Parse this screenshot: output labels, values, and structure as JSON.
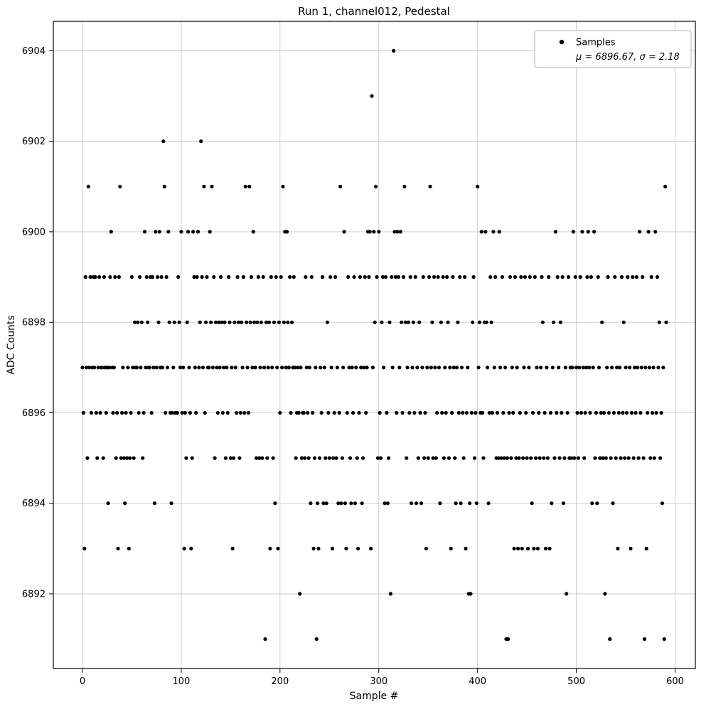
{
  "figure": {
    "title": "Run 1, channel012, Pedestal",
    "xlabel": "Sample #",
    "ylabel": "ADC Counts",
    "legend": {
      "label": "Samples",
      "stats": "μ = 6896.67, σ = 2.18"
    }
  },
  "chart_data": {
    "type": "scatter",
    "title": "Run 1, channel012, Pedestal",
    "xlabel": "Sample #",
    "ylabel": "ADC Counts",
    "xlim": [
      -29.5,
      620.5
    ],
    "ylim": [
      6890.35,
      6904.65
    ],
    "xticks": [
      0,
      100,
      200,
      300,
      400,
      500,
      600
    ],
    "yticks": [
      6892,
      6894,
      6896,
      6898,
      6900,
      6902,
      6904
    ],
    "grid": true,
    "grid_color": "#c9c9c9",
    "marker_color": "#000000",
    "marker_radius": 2.6,
    "legend_position": "upper right",
    "stats": {
      "mu": 6896.67,
      "sigma": 2.18
    },
    "series": [
      {
        "name": "Samples",
        "x_start": 0,
        "x_step": 1,
        "y": [
          6897,
          6896,
          6893,
          6899,
          6897,
          6895,
          6901,
          6897,
          6899,
          6896,
          6897,
          6899,
          6897,
          6899,
          6896,
          6895,
          6897,
          6899,
          6896,
          6897,
          6897,
          6895,
          6899,
          6897,
          6896,
          6897,
          6894,
          6897,
          6899,
          6900,
          6897,
          6896,
          6897,
          6899,
          6895,
          6896,
          6893,
          6899,
          6901,
          6895,
          6896,
          6897,
          6895,
          6894,
          6896,
          6895,
          6897,
          6893,
          6895,
          6896,
          6899,
          6897,
          6895,
          6898,
          6897,
          6897,
          6898,
          6896,
          6899,
          6897,
          6898,
          6895,
          6896,
          6900,
          6897,
          6899,
          6898,
          6897,
          6897,
          6899,
          6896,
          6899,
          6897,
          6894,
          6900,
          6897,
          6899,
          6898,
          6900,
          6897,
          6899,
          6897,
          6902,
          6901,
          6896,
          6899,
          6897,
          6900,
          6898,
          6896,
          6894,
          6896,
          6897,
          6898,
          6896,
          6896,
          6896,
          6899,
          6898,
          6897,
          6900,
          6896,
          6897,
          6893,
          6896,
          6895,
          6898,
          6900,
          6897,
          6896,
          6893,
          6895,
          6900,
          6899,
          6897,
          6896,
          6899,
          6900,
          6897,
          6898,
          6902,
          6899,
          6897,
          6901,
          6896,
          6898,
          6899,
          6897,
          6897,
          6900,
          6898,
          6901,
          6897,
          6899,
          6895,
          6898,
          6897,
          6896,
          6898,
          6897,
          6899,
          6898,
          6896,
          6897,
          6898,
          6895,
          6897,
          6896,
          6899,
          6898,
          6895,
          6897,
          6893,
          6895,
          6898,
          6897,
          6896,
          6899,
          6898,
          6895,
          6896,
          6898,
          6897,
          6899,
          6896,
          6901,
          6898,
          6897,
          6896,
          6901,
          6898,
          6899,
          6897,
          6900,
          6898,
          6897,
          6895,
          6898,
          6899,
          6895,
          6897,
          6898,
          6895,
          6899,
          6897,
          6891,
          6898,
          6895,
          6897,
          6898,
          6893,
          6899,
          6897,
          6895,
          6898,
          6894,
          6899,
          6897,
          6893,
          6898,
          6896,
          6899,
          6897,
          6901,
          6898,
          6900,
          6897,
          6900,
          6898,
          6897,
          6899,
          6896,
          6898,
          6897,
          6899,
          6897,
          6895,
          6896,
          6897,
          6896,
          6892,
          6897,
          6895,
          6896,
          6896,
          6895,
          6899,
          6897,
          6896,
          6895,
          6897,
          6894,
          6899,
          6896,
          6893,
          6895,
          6897,
          6891,
          6894,
          6893,
          6895,
          6897,
          6896,
          6899,
          6894,
          6897,
          6895,
          6894,
          6898,
          6896,
          6895,
          6899,
          6897,
          6893,
          6895,
          6896,
          6899,
          6895,
          6897,
          6894,
          6896,
          6901,
          6894,
          6895,
          6897,
          6900,
          6894,
          6893,
          6896,
          6899,
          6897,
          6895,
          6894,
          6897,
          6896,
          6899,
          6894,
          6897,
          6895,
          6893,
          6896,
          6899,
          6897,
          6894,
          6895,
          6897,
          6899,
          6896,
          6897,
          6900,
          6899,
          6900,
          6893,
          6903,
          6897,
          6900,
          6898,
          6901,
          6899,
          6895,
          6900,
          6896,
          6895,
          6898,
          6899,
          6897,
          6894,
          6899,
          6896,
          6894,
          6895,
          6898,
          6892,
          6899,
          6897,
          6904,
          6900,
          6899,
          6896,
          6900,
          6899,
          6897,
          6900,
          6898,
          6896,
          6899,
          6901,
          6898,
          6895,
          6897,
          6898,
          6896,
          6899,
          6894,
          6897,
          6898,
          6896,
          6899,
          6894,
          6897,
          6895,
          6898,
          6896,
          6894,
          6897,
          6899,
          6895,
          6896,
          6893,
          6897,
          6895,
          6899,
          6901,
          6897,
          6898,
          6895,
          6899,
          6897,
          6895,
          6896,
          6899,
          6897,
          6894,
          6898,
          6896,
          6899,
          6895,
          6897,
          6896,
          6899,
          6898,
          6895,
          6897,
          6893,
          6896,
          6899,
          6897,
          6895,
          6894,
          6897,
          6898,
          6896,
          6899,
          6894,
          6897,
          6896,
          6895,
          6899,
          6893,
          6896,
          6897,
          6892,
          6894,
          6892,
          6896,
          6898,
          6899,
          6895,
          6896,
          6894,
          6901,
          6897,
          6898,
          6896,
          6900,
          6896,
          6895,
          6898,
          6900,
          6898,
          6897,
          6894,
          6896,
          6899,
          6898,
          6896,
          6900,
          6897,
          6899,
          6895,
          6896,
          6895,
          6900,
          6897,
          6895,
          6899,
          6896,
          6895,
          6897,
          6891,
          6895,
          6891,
          6896,
          6899,
          6895,
          6897,
          6896,
          6893,
          6899,
          6895,
          6897,
          6893,
          6895,
          6896,
          6899,
          6893,
          6895,
          6897,
          6899,
          6896,
          6895,
          6893,
          6897,
          6899,
          6895,
          6894,
          6896,
          6893,
          6899,
          6895,
          6897,
          6893,
          6896,
          6895,
          6897,
          6899,
          6898,
          6895,
          6896,
          6893,
          6897,
          6895,
          6899,
          6893,
          6896,
          6894,
          6897,
          6898,
          6895,
          6900,
          6896,
          6899,
          6897,
          6895,
          6898,
          6896,
          6899,
          6894,
          6895,
          6897,
          6892,
          6896,
          6899,
          6895,
          6897,
          6895,
          6897,
          6900,
          6895,
          6899,
          6897,
          6896,
          6895,
          6897,
          6899,
          6896,
          6900,
          6897,
          6895,
          6896,
          6897,
          6899,
          6900,
          6897,
          6896,
          6899,
          6894,
          6897,
          6900,
          6895,
          6896,
          6894,
          6899,
          6897,
          6895,
          6896,
          6898,
          6895,
          6896,
          6892,
          6895,
          6897,
          6899,
          6896,
          6891,
          6895,
          6897,
          6894,
          6896,
          6899,
          6895,
          6897,
          6893,
          6896,
          6897,
          6895,
          6899,
          6896,
          6898,
          6895,
          6897,
          6896,
          6899,
          6895,
          6897,
          6893,
          6896,
          6899,
          6895,
          6897,
          6896,
          6899,
          6897,
          6895,
          6900,
          6896,
          6897,
          6899,
          6895,
          6891,
          6897,
          6893,
          6896,
          6900,
          6897,
          6895,
          6899,
          6896,
          6897,
          6895,
          6900,
          6896,
          6899,
          6897,
          6898,
          6895,
          6896,
          6894,
          6897,
          6891,
          6901,
          6898
        ]
      }
    ]
  }
}
